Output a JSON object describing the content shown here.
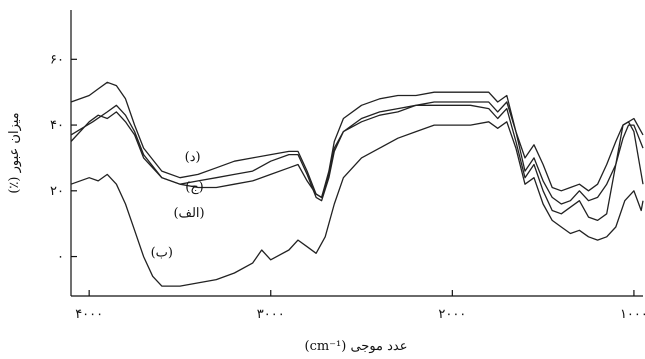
{
  "chart_data": {
    "type": "line",
    "title": "",
    "xlabel": "عدد موجی (cm⁻¹)",
    "ylabel": "میزان عبور (٪)",
    "xlim": [
      4100,
      950
    ],
    "ylim": [
      -12,
      75
    ],
    "x_reversed": true,
    "grid": false,
    "legend": "inline labels",
    "x_ticks": [
      {
        "value": 4000,
        "label": "۴۰۰۰"
      },
      {
        "value": 3000,
        "label": "۳۰۰۰"
      },
      {
        "value": 2000,
        "label": "۲۰۰۰"
      },
      {
        "value": 1000,
        "label": "۱۰۰۰"
      }
    ],
    "y_ticks": [
      {
        "value": 0,
        "label": "۰"
      },
      {
        "value": 20,
        "label": "۲۰"
      },
      {
        "value": 40,
        "label": "۴۰"
      },
      {
        "value": 60,
        "label": "۶۰"
      }
    ],
    "series": [
      {
        "name": "(الف)",
        "label_at": [
          3450,
          12
        ],
        "points": [
          [
            4100,
            37
          ],
          [
            3980,
            41
          ],
          [
            3900,
            44
          ],
          [
            3850,
            46
          ],
          [
            3800,
            43
          ],
          [
            3750,
            38
          ],
          [
            3700,
            31
          ],
          [
            3600,
            24
          ],
          [
            3500,
            22
          ],
          [
            3400,
            21
          ],
          [
            3300,
            21
          ],
          [
            3200,
            22
          ],
          [
            3100,
            23
          ],
          [
            3000,
            25
          ],
          [
            2900,
            27
          ],
          [
            2850,
            28
          ],
          [
            2800,
            23
          ],
          [
            2750,
            19
          ],
          [
            2720,
            18
          ],
          [
            2680,
            25
          ],
          [
            2650,
            33
          ],
          [
            2600,
            38
          ],
          [
            2500,
            41
          ],
          [
            2400,
            43
          ],
          [
            2300,
            44
          ],
          [
            2200,
            46
          ],
          [
            2100,
            47
          ],
          [
            2000,
            47
          ],
          [
            1900,
            47
          ],
          [
            1800,
            47
          ],
          [
            1750,
            44
          ],
          [
            1700,
            47
          ],
          [
            1650,
            38
          ],
          [
            1600,
            30
          ],
          [
            1550,
            34
          ],
          [
            1500,
            28
          ],
          [
            1450,
            21
          ],
          [
            1400,
            20
          ],
          [
            1350,
            21
          ],
          [
            1300,
            22
          ],
          [
            1250,
            20
          ],
          [
            1200,
            22
          ],
          [
            1150,
            28
          ],
          [
            1100,
            35
          ],
          [
            1060,
            40
          ],
          [
            1030,
            41
          ],
          [
            1000,
            42
          ],
          [
            950,
            37
          ]
        ]
      },
      {
        "name": "(ب)",
        "label_at": [
          3600,
          0
        ],
        "points": [
          [
            4100,
            22
          ],
          [
            4000,
            24
          ],
          [
            3950,
            23
          ],
          [
            3900,
            25
          ],
          [
            3850,
            22
          ],
          [
            3800,
            16
          ],
          [
            3750,
            8
          ],
          [
            3700,
            0
          ],
          [
            3650,
            -6
          ],
          [
            3600,
            -9
          ],
          [
            3500,
            -9
          ],
          [
            3400,
            -8
          ],
          [
            3300,
            -7
          ],
          [
            3200,
            -5
          ],
          [
            3100,
            -2
          ],
          [
            3050,
            2
          ],
          [
            3000,
            -1
          ],
          [
            2900,
            2
          ],
          [
            2850,
            5
          ],
          [
            2800,
            3
          ],
          [
            2750,
            1
          ],
          [
            2700,
            6
          ],
          [
            2650,
            16
          ],
          [
            2600,
            24
          ],
          [
            2500,
            30
          ],
          [
            2400,
            33
          ],
          [
            2300,
            36
          ],
          [
            2200,
            38
          ],
          [
            2100,
            40
          ],
          [
            2000,
            40
          ],
          [
            1900,
            40
          ],
          [
            1800,
            41
          ],
          [
            1750,
            39
          ],
          [
            1700,
            41
          ],
          [
            1650,
            33
          ],
          [
            1600,
            22
          ],
          [
            1550,
            24
          ],
          [
            1500,
            16
          ],
          [
            1450,
            11
          ],
          [
            1400,
            9
          ],
          [
            1350,
            7
          ],
          [
            1300,
            8
          ],
          [
            1250,
            6
          ],
          [
            1200,
            5
          ],
          [
            1150,
            6
          ],
          [
            1100,
            9
          ],
          [
            1050,
            17
          ],
          [
            1000,
            20
          ],
          [
            960,
            14
          ],
          [
            950,
            17
          ]
        ]
      },
      {
        "name": "(ج)",
        "label_at": [
          3420,
          20
        ],
        "points": [
          [
            4100,
            35
          ],
          [
            4000,
            41
          ],
          [
            3950,
            43
          ],
          [
            3900,
            42
          ],
          [
            3850,
            44
          ],
          [
            3800,
            41
          ],
          [
            3750,
            37
          ],
          [
            3700,
            30
          ],
          [
            3600,
            24
          ],
          [
            3500,
            22
          ],
          [
            3400,
            23
          ],
          [
            3300,
            24
          ],
          [
            3200,
            25
          ],
          [
            3100,
            26
          ],
          [
            3000,
            29
          ],
          [
            2900,
            31
          ],
          [
            2850,
            31
          ],
          [
            2800,
            25
          ],
          [
            2750,
            18
          ],
          [
            2720,
            17
          ],
          [
            2680,
            24
          ],
          [
            2650,
            32
          ],
          [
            2600,
            38
          ],
          [
            2500,
            42
          ],
          [
            2400,
            44
          ],
          [
            2300,
            45
          ],
          [
            2200,
            46
          ],
          [
            2100,
            46
          ],
          [
            2000,
            46
          ],
          [
            1900,
            46
          ],
          [
            1800,
            45
          ],
          [
            1750,
            42
          ],
          [
            1700,
            45
          ],
          [
            1650,
            35
          ],
          [
            1600,
            24
          ],
          [
            1550,
            28
          ],
          [
            1500,
            20
          ],
          [
            1450,
            14
          ],
          [
            1400,
            13
          ],
          [
            1350,
            15
          ],
          [
            1300,
            17
          ],
          [
            1250,
            12
          ],
          [
            1200,
            11
          ],
          [
            1150,
            13
          ],
          [
            1100,
            28
          ],
          [
            1060,
            40
          ],
          [
            1030,
            41
          ],
          [
            1000,
            38
          ],
          [
            950,
            22
          ]
        ]
      },
      {
        "name": "(د)",
        "label_at": [
          3430,
          29
        ],
        "points": [
          [
            4100,
            47
          ],
          [
            4000,
            49
          ],
          [
            3950,
            51
          ],
          [
            3900,
            53
          ],
          [
            3850,
            52
          ],
          [
            3800,
            48
          ],
          [
            3750,
            40
          ],
          [
            3700,
            33
          ],
          [
            3600,
            26
          ],
          [
            3500,
            24
          ],
          [
            3400,
            25
          ],
          [
            3300,
            27
          ],
          [
            3200,
            29
          ],
          [
            3100,
            30
          ],
          [
            3000,
            31
          ],
          [
            2900,
            32
          ],
          [
            2850,
            32
          ],
          [
            2800,
            26
          ],
          [
            2750,
            19
          ],
          [
            2720,
            18
          ],
          [
            2680,
            26
          ],
          [
            2650,
            35
          ],
          [
            2600,
            42
          ],
          [
            2500,
            46
          ],
          [
            2400,
            48
          ],
          [
            2300,
            49
          ],
          [
            2200,
            49
          ],
          [
            2100,
            50
          ],
          [
            2000,
            50
          ],
          [
            1900,
            50
          ],
          [
            1800,
            50
          ],
          [
            1750,
            47
          ],
          [
            1700,
            49
          ],
          [
            1650,
            38
          ],
          [
            1600,
            26
          ],
          [
            1550,
            30
          ],
          [
            1500,
            23
          ],
          [
            1450,
            18
          ],
          [
            1400,
            16
          ],
          [
            1350,
            17
          ],
          [
            1300,
            20
          ],
          [
            1250,
            17
          ],
          [
            1200,
            18
          ],
          [
            1150,
            22
          ],
          [
            1100,
            28
          ],
          [
            1060,
            36
          ],
          [
            1030,
            40
          ],
          [
            1000,
            40
          ],
          [
            950,
            33
          ]
        ]
      }
    ]
  }
}
